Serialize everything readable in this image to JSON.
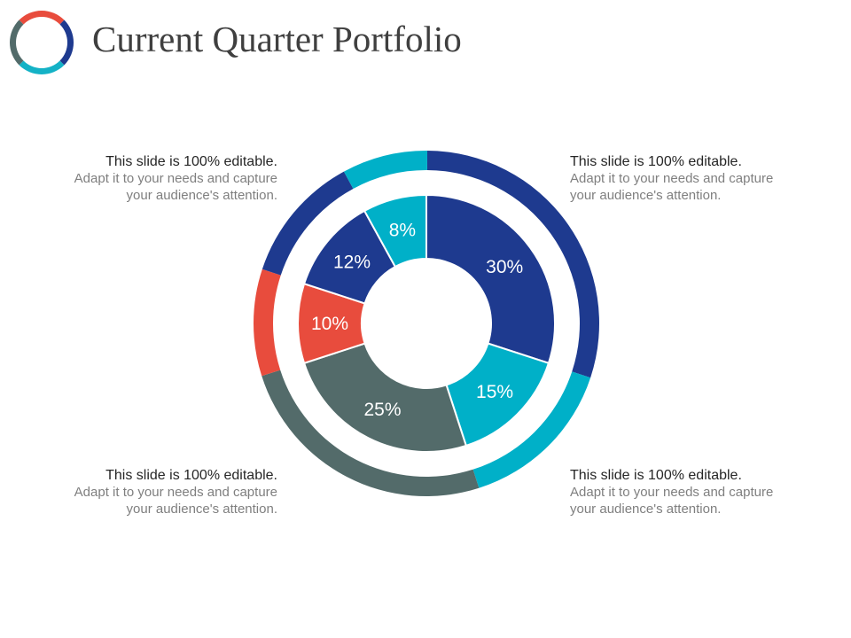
{
  "title": "Current Quarter Portfolio",
  "logo": {
    "name": "ring-logo-icon",
    "segments": [
      {
        "color": "#e84c3d",
        "fraction": 0.25
      },
      {
        "color": "#1e3a8f",
        "fraction": 0.25
      },
      {
        "color": "#14b2c6",
        "fraction": 0.25
      },
      {
        "color": "#526b6a",
        "fraction": 0.25
      }
    ]
  },
  "chart_data": {
    "type": "pie",
    "title": "",
    "inner_ring": [
      {
        "label": "30%",
        "value": 30,
        "color": "#1e3a8f"
      },
      {
        "label": "15%",
        "value": 15,
        "color": "#00b0c8"
      },
      {
        "label": "25%",
        "value": 25,
        "color": "#536b6a"
      },
      {
        "label": "10%",
        "value": 10,
        "color": "#e84c3d"
      },
      {
        "label": "12%",
        "value": 12,
        "color": "#1e3a8f"
      },
      {
        "label": "8%",
        "value": 8,
        "color": "#00b0c8"
      }
    ],
    "outer_ring": [
      {
        "value": 30,
        "color": "#1e3a8f"
      },
      {
        "value": 15,
        "color": "#00b0c8"
      },
      {
        "value": 25,
        "color": "#536b6a"
      },
      {
        "value": 10,
        "color": "#e84c3d"
      },
      {
        "value": 12,
        "color": "#1e3a8f"
      },
      {
        "value": 8,
        "color": "#00b0c8"
      }
    ]
  },
  "callouts": {
    "top_left": {
      "heading": "This slide is 100% editable.",
      "line1": "Adapt it to your needs and capture",
      "line2": "your audience's attention."
    },
    "top_right": {
      "heading": "This slide is 100% editable.",
      "line1": "Adapt it to your needs and capture",
      "line2": "your audience's attention."
    },
    "bottom_left": {
      "heading": "This slide is 100% editable.",
      "line1": "Adapt it to your needs and capture",
      "line2": "your audience's attention."
    },
    "bottom_right": {
      "heading": "This slide is 100% editable.",
      "line1": "Adapt it to your needs and capture",
      "line2": "your audience's attention."
    }
  }
}
